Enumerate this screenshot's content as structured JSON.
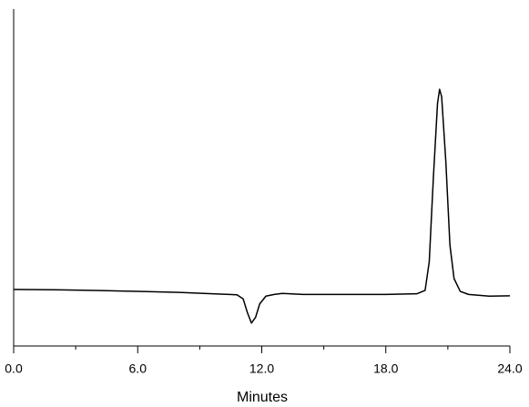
{
  "chart_data": {
    "type": "line",
    "xlabel": "Minutes",
    "x": [
      0,
      2,
      4,
      6,
      8,
      10,
      10.8,
      11.1,
      11.3,
      11.5,
      11.7,
      11.9,
      12.2,
      12.6,
      13,
      14,
      16,
      18,
      19.5,
      19.9,
      20.1,
      20.3,
      20.5,
      20.6,
      20.7,
      20.9,
      21.1,
      21.3,
      21.6,
      22,
      23,
      24
    ],
    "series": [
      {
        "color": "#000000",
        "values": [
          16.8,
          16.7,
          16.5,
          16.2,
          15.9,
          15.4,
          15.2,
          14.0,
          10,
          6.8,
          8.5,
          12.5,
          14.8,
          15.3,
          15.6,
          15.3,
          15.3,
          15.3,
          15.5,
          16.5,
          25,
          50,
          72,
          76.2,
          74,
          55,
          30,
          20,
          16.2,
          15.3,
          14.8,
          14.9
        ]
      }
    ],
    "xlim": [
      0,
      24
    ],
    "ylim": [
      0,
      100
    ],
    "xticks": [
      {
        "value": 0,
        "label": "0.0"
      },
      {
        "value": 6,
        "label": "6.0"
      },
      {
        "value": 12,
        "label": "12.0"
      },
      {
        "value": 18,
        "label": "18.0"
      },
      {
        "value": 24,
        "label": "24.0"
      }
    ],
    "xticks_minor": [
      3,
      9,
      15,
      21
    ]
  }
}
